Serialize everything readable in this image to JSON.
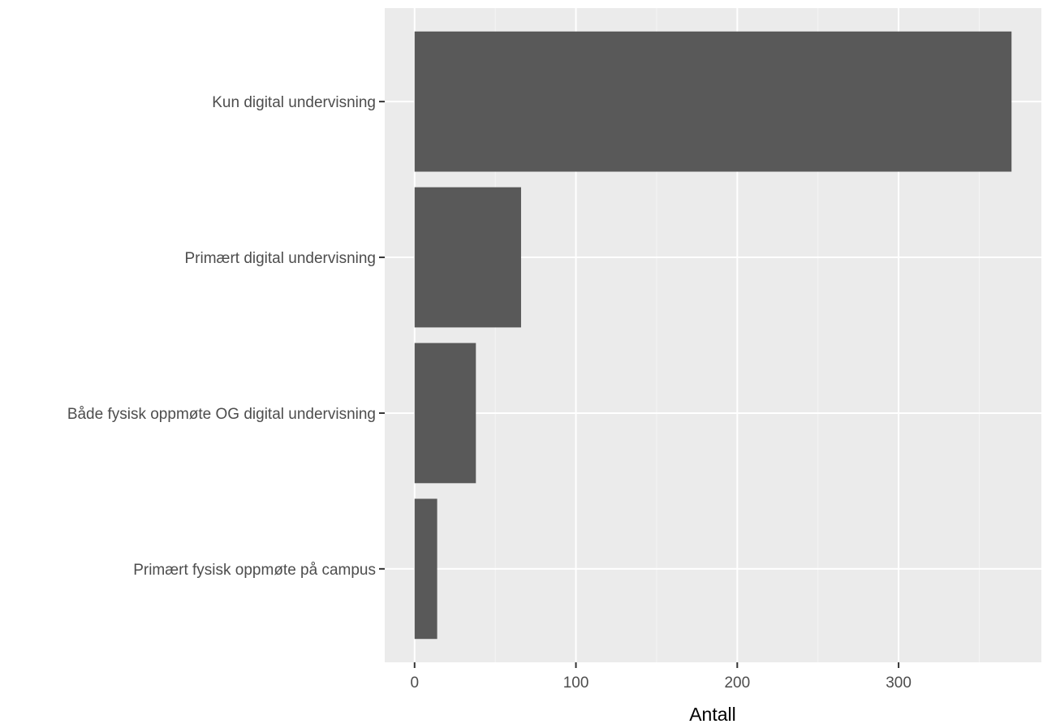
{
  "chart_data": {
    "type": "bar",
    "orientation": "horizontal",
    "categories": [
      "Kun digital undervisning",
      "Primært digital undervisning",
      "Både fysisk oppmøte OG digital undervisning",
      "Primært fysisk oppmøte på campus"
    ],
    "values": [
      370,
      66,
      38,
      14
    ],
    "title": "",
    "xlabel": "Antall",
    "ylabel": "",
    "xlim": [
      -18.5,
      388.5
    ],
    "xticks": [
      0,
      100,
      200,
      300
    ],
    "xtick_labels": [
      "0",
      "100",
      "200",
      "300"
    ],
    "grid": true,
    "legend": "none",
    "colors": {
      "bar": "#595959",
      "panel": "#ebebeb",
      "grid_major": "#ffffff",
      "grid_minor": "#f5f5f5",
      "axis_text": "#4d4d4d",
      "axis_tick": "#333333"
    }
  }
}
